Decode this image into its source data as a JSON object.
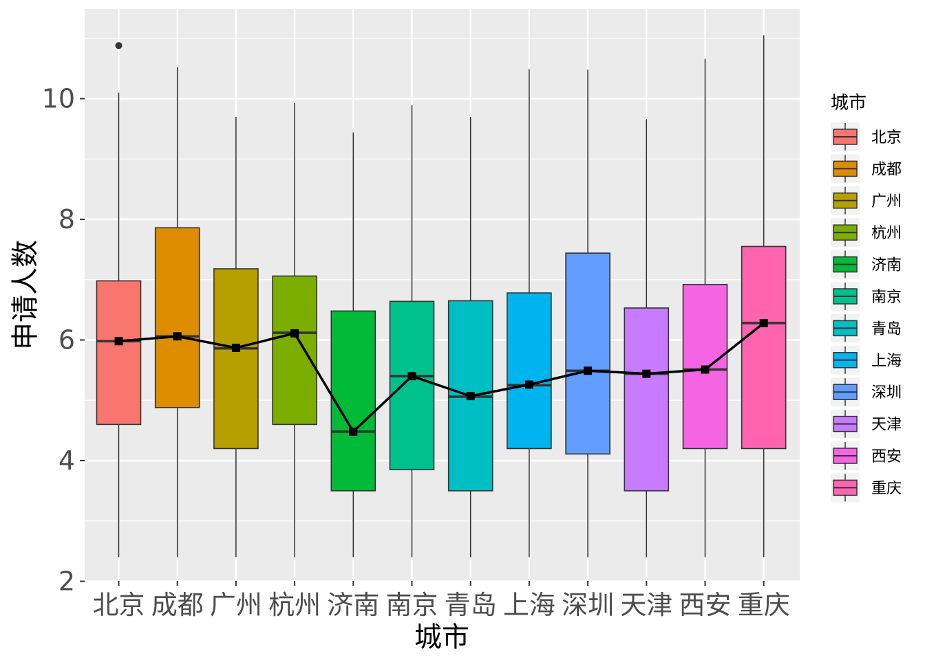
{
  "chart_data": {
    "type": "boxplot",
    "xlabel": "城市",
    "ylabel": "申请人数",
    "ylim": [
      2,
      11.3
    ],
    "y_ticks": [
      2,
      4,
      6,
      8,
      10
    ],
    "grid": true,
    "legend": {
      "title": "城市",
      "position": "right"
    },
    "categories": [
      "北京",
      "成都",
      "广州",
      "杭州",
      "济南",
      "南京",
      "青岛",
      "上海",
      "深圳",
      "天津",
      "西安",
      "重庆"
    ],
    "colors": [
      "#F8766D",
      "#DE8C00",
      "#B79F00",
      "#7CAE00",
      "#00BA38",
      "#00C08B",
      "#00BFC4",
      "#00B4F0",
      "#619CFF",
      "#C77CFF",
      "#F564E3",
      "#FF64B0"
    ],
    "boxes": [
      {
        "min": 2.4,
        "q1": 4.6,
        "median": 5.98,
        "q3": 6.98,
        "max": 10.1,
        "mean": 5.98,
        "outliers": [
          10.88
        ]
      },
      {
        "min": 2.4,
        "q1": 4.88,
        "median": 6.06,
        "q3": 7.86,
        "max": 10.52,
        "mean": 6.06,
        "outliers": []
      },
      {
        "min": 2.4,
        "q1": 4.2,
        "median": 5.86,
        "q3": 7.18,
        "max": 9.7,
        "mean": 5.87,
        "outliers": []
      },
      {
        "min": 2.4,
        "q1": 4.6,
        "median": 6.12,
        "q3": 7.06,
        "max": 9.93,
        "mean": 6.11,
        "outliers": []
      },
      {
        "min": 2.4,
        "q1": 3.5,
        "median": 4.48,
        "q3": 6.48,
        "max": 9.44,
        "mean": 4.48,
        "outliers": []
      },
      {
        "min": 2.4,
        "q1": 3.85,
        "median": 5.4,
        "q3": 6.64,
        "max": 9.89,
        "mean": 5.4,
        "outliers": []
      },
      {
        "min": 2.4,
        "q1": 3.5,
        "median": 5.06,
        "q3": 6.65,
        "max": 9.7,
        "mean": 5.07,
        "outliers": []
      },
      {
        "min": 2.4,
        "q1": 4.2,
        "median": 5.25,
        "q3": 6.78,
        "max": 10.49,
        "mean": 5.26,
        "outliers": []
      },
      {
        "min": 2.4,
        "q1": 4.11,
        "median": 5.49,
        "q3": 7.44,
        "max": 10.48,
        "mean": 5.49,
        "outliers": []
      },
      {
        "min": 2.4,
        "q1": 3.5,
        "median": 5.44,
        "q3": 6.53,
        "max": 9.66,
        "mean": 5.44,
        "outliers": []
      },
      {
        "min": 2.4,
        "q1": 4.2,
        "median": 5.51,
        "q3": 6.92,
        "max": 10.66,
        "mean": 5.51,
        "outliers": []
      },
      {
        "min": 2.4,
        "q1": 4.2,
        "median": 6.28,
        "q3": 7.55,
        "max": 11.05,
        "mean": 6.28,
        "outliers": []
      }
    ],
    "mean_line": {
      "color": "#000000",
      "marker": "square"
    }
  }
}
